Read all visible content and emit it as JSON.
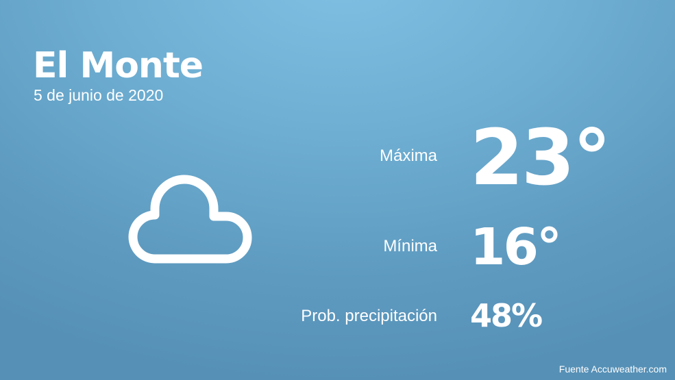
{
  "city": "El Monte",
  "date": "5 de junio de 2020",
  "condition_icon": "cloud-icon",
  "max": {
    "label": "Máxima",
    "value": "23°"
  },
  "min": {
    "label": "Mínima",
    "value": "16°"
  },
  "precip": {
    "label": "Prob. precipitación",
    "value": "48%"
  },
  "source": "Fuente Accuweather.com"
}
